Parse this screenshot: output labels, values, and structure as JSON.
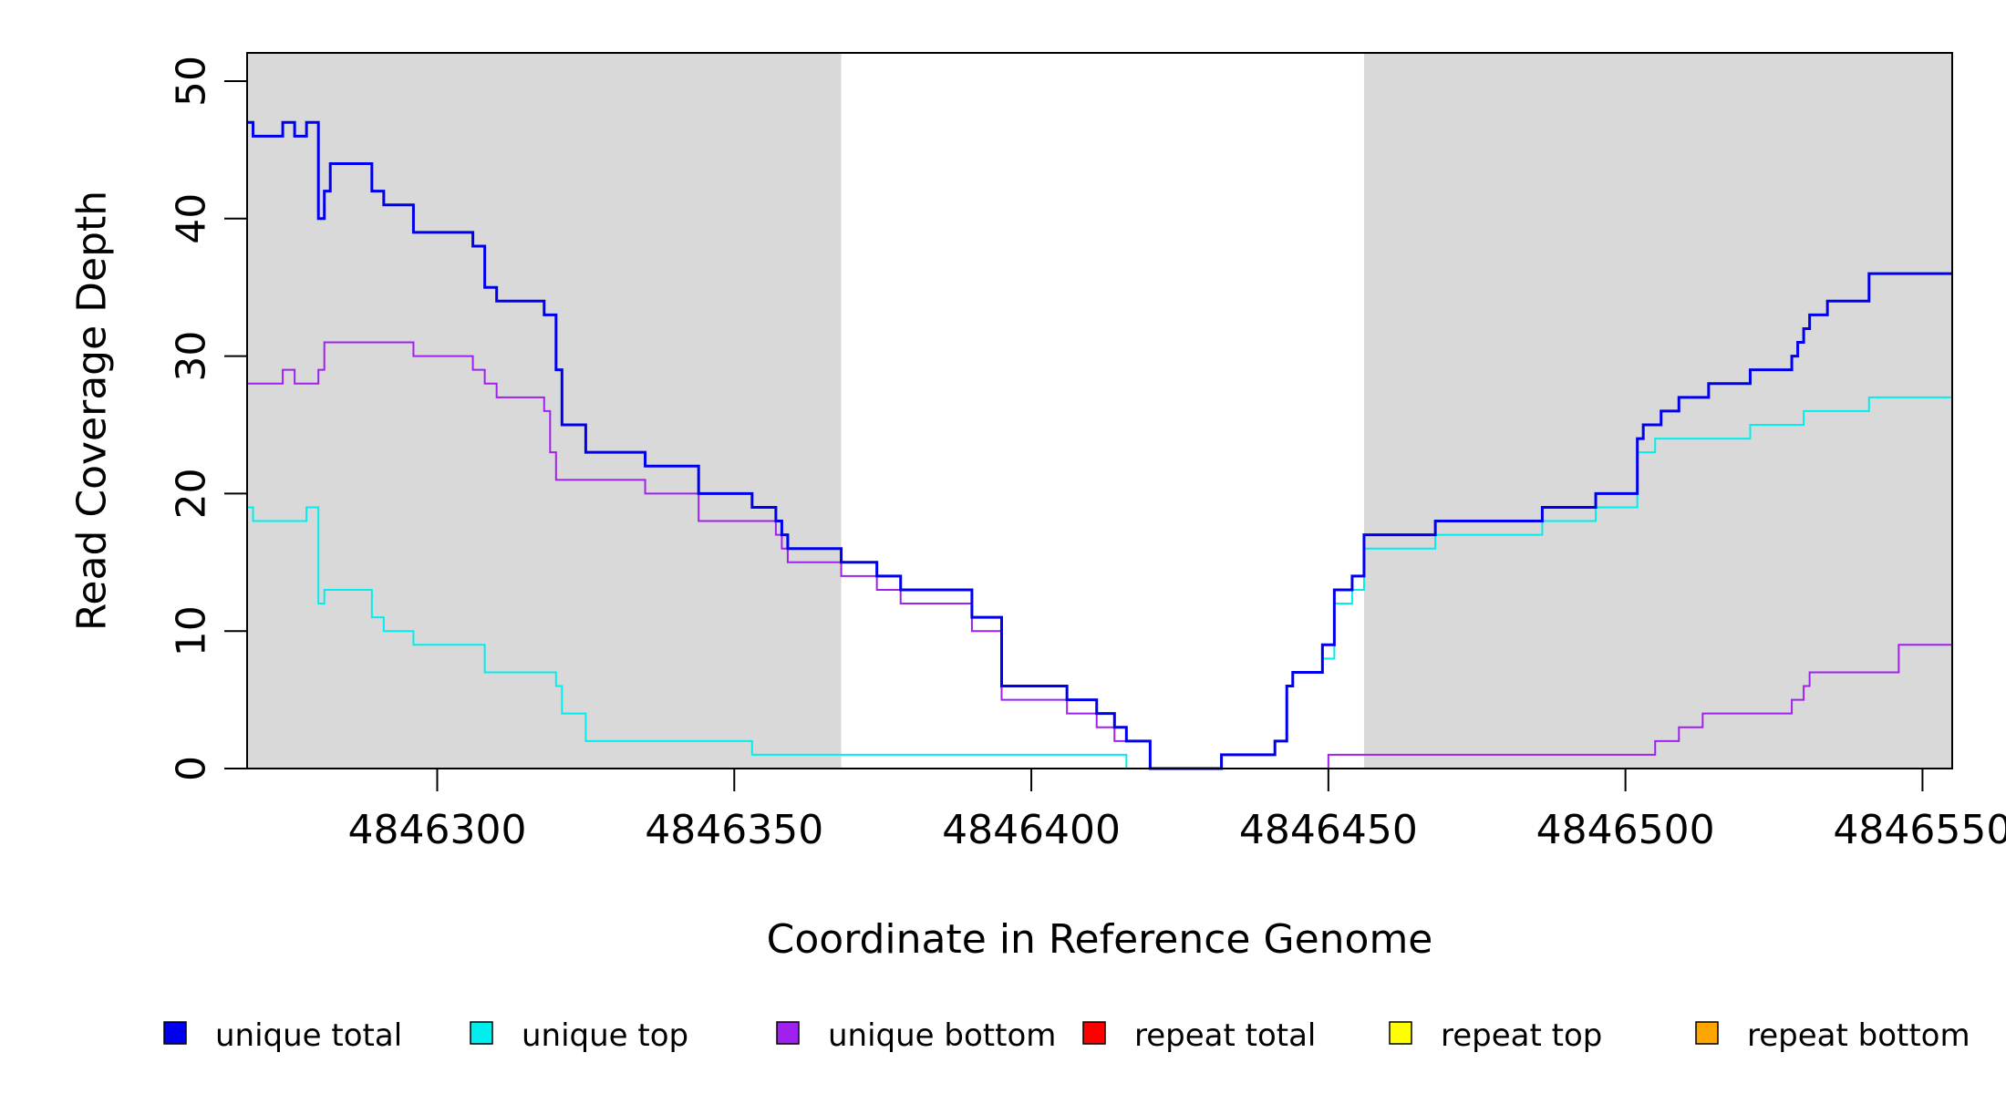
{
  "chart_data": {
    "type": "line",
    "title": "",
    "xlabel": "Coordinate in Reference Genome",
    "ylabel": "Read Coverage Depth",
    "xlim": [
      4846268,
      4846555
    ],
    "ylim": [
      0,
      52
    ],
    "x_ticks": [
      4846300,
      4846350,
      4846400,
      4846450,
      4846500,
      4846550
    ],
    "y_ticks": [
      0,
      10,
      20,
      30,
      40,
      50
    ],
    "grid": false,
    "legend_position": "bottom",
    "shaded_regions": [
      {
        "x_start": 4846268,
        "x_end": 4846368,
        "color": "#d9d9d9"
      },
      {
        "x_start": 4846456,
        "x_end": 4846555,
        "color": "#d9d9d9"
      }
    ],
    "series": [
      {
        "name": "unique total",
        "color": "#0000ee",
        "step": true,
        "x": [
          4846268,
          4846269,
          4846274,
          4846276,
          4846278,
          4846280,
          4846281,
          4846282,
          4846289,
          4846291,
          4846296,
          4846306,
          4846308,
          4846310,
          4846318,
          4846320,
          4846321,
          4846325,
          4846335,
          4846344,
          4846353,
          4846357,
          4846358,
          4846359,
          4846368,
          4846374,
          4846378,
          4846390,
          4846395,
          4846406,
          4846411,
          4846414,
          4846416,
          4846420,
          4846432,
          4846441,
          4846443,
          4846444,
          4846449,
          4846451,
          4846454,
          4846456,
          4846468,
          4846486,
          4846495,
          4846502,
          4846503,
          4846506,
          4846509,
          4846514,
          4846521,
          4846528,
          4846529,
          4846530,
          4846531,
          4846534,
          4846541,
          4846546,
          4846555
        ],
        "values": [
          47,
          46,
          47,
          46,
          47,
          40,
          42,
          44,
          42,
          41,
          39,
          38,
          35,
          34,
          33,
          29,
          25,
          23,
          22,
          20,
          19,
          18,
          17,
          16,
          15,
          14,
          13,
          11,
          6,
          5,
          4,
          3,
          2,
          0,
          1,
          2,
          6,
          7,
          9,
          13,
          14,
          17,
          18,
          19,
          20,
          24,
          25,
          26,
          27,
          28,
          29,
          30,
          31,
          32,
          33,
          34,
          36,
          36,
          36
        ]
      },
      {
        "name": "unique top",
        "color": "#00eeee",
        "step": true,
        "x": [
          4846268,
          4846269,
          4846278,
          4846280,
          4846281,
          4846289,
          4846291,
          4846296,
          4846308,
          4846320,
          4846321,
          4846325,
          4846353,
          4846368,
          4846416,
          4846418,
          4846432,
          4846441,
          4846443,
          4846444,
          4846449,
          4846451,
          4846454,
          4846456,
          4846468,
          4846486,
          4846495,
          4846502,
          4846505,
          4846521,
          4846530,
          4846541,
          4846555
        ],
        "values": [
          19,
          18,
          19,
          12,
          13,
          11,
          10,
          9,
          7,
          6,
          4,
          2,
          1,
          1,
          0,
          0,
          1,
          2,
          6,
          7,
          8,
          12,
          13,
          16,
          17,
          18,
          19,
          23,
          24,
          25,
          26,
          27,
          27
        ]
      },
      {
        "name": "unique bottom",
        "color": "#a020f0",
        "step": true,
        "x": [
          4846268,
          4846274,
          4846276,
          4846280,
          4846281,
          4846296,
          4846306,
          4846308,
          4846310,
          4846318,
          4846319,
          4846320,
          4846335,
          4846344,
          4846357,
          4846358,
          4846359,
          4846368,
          4846374,
          4846378,
          4846390,
          4846395,
          4846406,
          4846411,
          4846414,
          4846416,
          4846420,
          4846450,
          4846505,
          4846509,
          4846513,
          4846528,
          4846530,
          4846531,
          4846546,
          4846555
        ],
        "values": [
          28,
          29,
          28,
          29,
          31,
          30,
          29,
          28,
          27,
          26,
          23,
          21,
          20,
          18,
          17,
          16,
          15,
          14,
          13,
          12,
          10,
          5,
          4,
          3,
          2,
          2,
          0,
          1,
          2,
          3,
          4,
          5,
          6,
          7,
          9,
          9
        ]
      },
      {
        "name": "repeat total",
        "color": "#ff0000",
        "step": true,
        "x": [
          4846268,
          4846555
        ],
        "values": [
          0,
          0
        ]
      },
      {
        "name": "repeat top",
        "color": "#ffff00",
        "step": true,
        "x": [
          4846268,
          4846555
        ],
        "values": [
          0,
          0
        ]
      },
      {
        "name": "repeat bottom",
        "color": "#ffa500",
        "step": true,
        "x": [
          4846268,
          4846555
        ],
        "values": [
          0,
          0
        ]
      }
    ]
  }
}
